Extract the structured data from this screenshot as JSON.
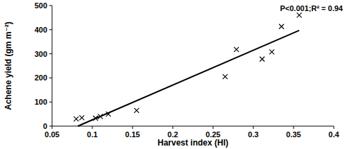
{
  "chart_data": {
    "type": "scatter",
    "x_label": "Harvest index (HI)",
    "y_label": "Achene yield (gm m⁻²)",
    "annotations": [
      "P<0.001;R² = 0.94"
    ],
    "xlim": [
      0.05,
      0.4
    ],
    "xticks": [
      0.05,
      0.1,
      0.15,
      0.2,
      0.25,
      0.3,
      0.35,
      0.4
    ],
    "ylim": [
      0,
      500
    ],
    "yticks": [
      0,
      100,
      200,
      300,
      400,
      500
    ],
    "grid": false,
    "series": [
      {
        "type": "scatter",
        "marker": "x",
        "color": "#000000",
        "x": [
          0.08,
          0.087,
          0.104,
          0.11,
          0.12,
          0.155,
          0.265,
          0.279,
          0.311,
          0.323,
          0.335,
          0.357
        ],
        "values": [
          30,
          35,
          33,
          40,
          50,
          65,
          205,
          318,
          278,
          308,
          413,
          460
        ]
      },
      {
        "type": "line",
        "line_style": "solid",
        "color": "#000000",
        "x": [
          0.082,
          0.357
        ],
        "values": [
          0,
          397
        ]
      }
    ]
  }
}
